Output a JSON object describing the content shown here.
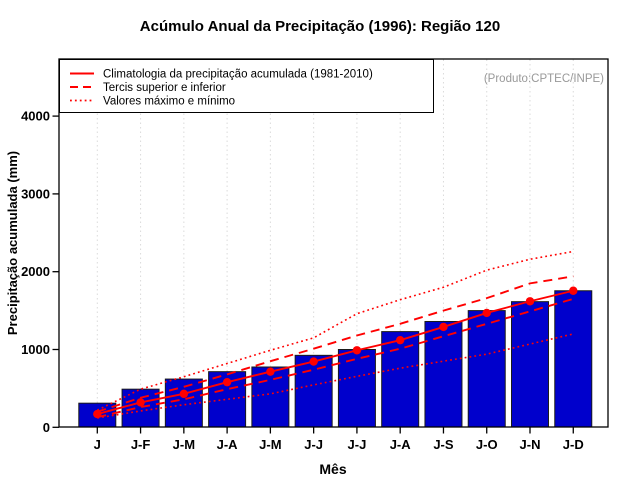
{
  "chart_data": {
    "type": "bar",
    "title": "Acúmulo Anual da Precipitação (1996): Região 120",
    "xlabel": "Mês",
    "ylabel": "Precipitação acumulada (mm)",
    "categories": [
      "J",
      "J-F",
      "J-M",
      "J-A",
      "J-M",
      "J-J",
      "J-J",
      "J-A",
      "J-S",
      "J-O",
      "J-N",
      "J-D"
    ],
    "bar_series": {
      "name": "1996",
      "values": [
        310,
        490,
        620,
        715,
        775,
        925,
        1000,
        1230,
        1360,
        1500,
        1615,
        1755
      ]
    },
    "line_series": [
      {
        "name": "Climatologia da precipitação acumulada (1981-2010)",
        "style": "solid",
        "marker": true,
        "values": [
          170,
          320,
          430,
          580,
          715,
          845,
          990,
          1120,
          1290,
          1470,
          1620,
          1755
        ]
      },
      {
        "name": "Tercil superior",
        "style": "dashed",
        "marker": false,
        "values": [
          200,
          380,
          520,
          680,
          850,
          1010,
          1180,
          1330,
          1500,
          1660,
          1850,
          1940
        ]
      },
      {
        "name": "Tercil inferior",
        "style": "dashed",
        "marker": false,
        "values": [
          130,
          260,
          360,
          490,
          610,
          740,
          880,
          1010,
          1170,
          1330,
          1490,
          1650
        ]
      },
      {
        "name": "Valor máximo",
        "style": "dotted",
        "marker": false,
        "values": [
          220,
          490,
          650,
          820,
          990,
          1150,
          1460,
          1640,
          1800,
          2020,
          2160,
          2260
        ]
      },
      {
        "name": "Valor mínimo",
        "style": "dotted",
        "marker": false,
        "values": [
          120,
          210,
          290,
          360,
          430,
          545,
          655,
          760,
          850,
          940,
          1070,
          1200
        ]
      }
    ],
    "yticks": [
      0,
      1000,
      2000,
      3000,
      4000
    ],
    "ylim": [
      0,
      4730
    ],
    "grid": "vertical-dotted",
    "legend_position": "top-left"
  },
  "legend": {
    "items": [
      {
        "label": "Climatologia da precipitação acumulada (1981-2010)",
        "style": "solid"
      },
      {
        "label": "Tercis superior e inferior",
        "style": "dashed"
      },
      {
        "label": "Valores máximo e mínimo",
        "style": "dotted"
      }
    ]
  },
  "annotations": {
    "product": "(Produto:CPTEC/INPE)"
  },
  "colors": {
    "bar_fill": "#0000CC",
    "bar_stroke": "#1a1a1a",
    "line_red": "#FF0000",
    "grid": "#DBDBDB",
    "credit_text": "#999999",
    "axis": "#000000"
  }
}
